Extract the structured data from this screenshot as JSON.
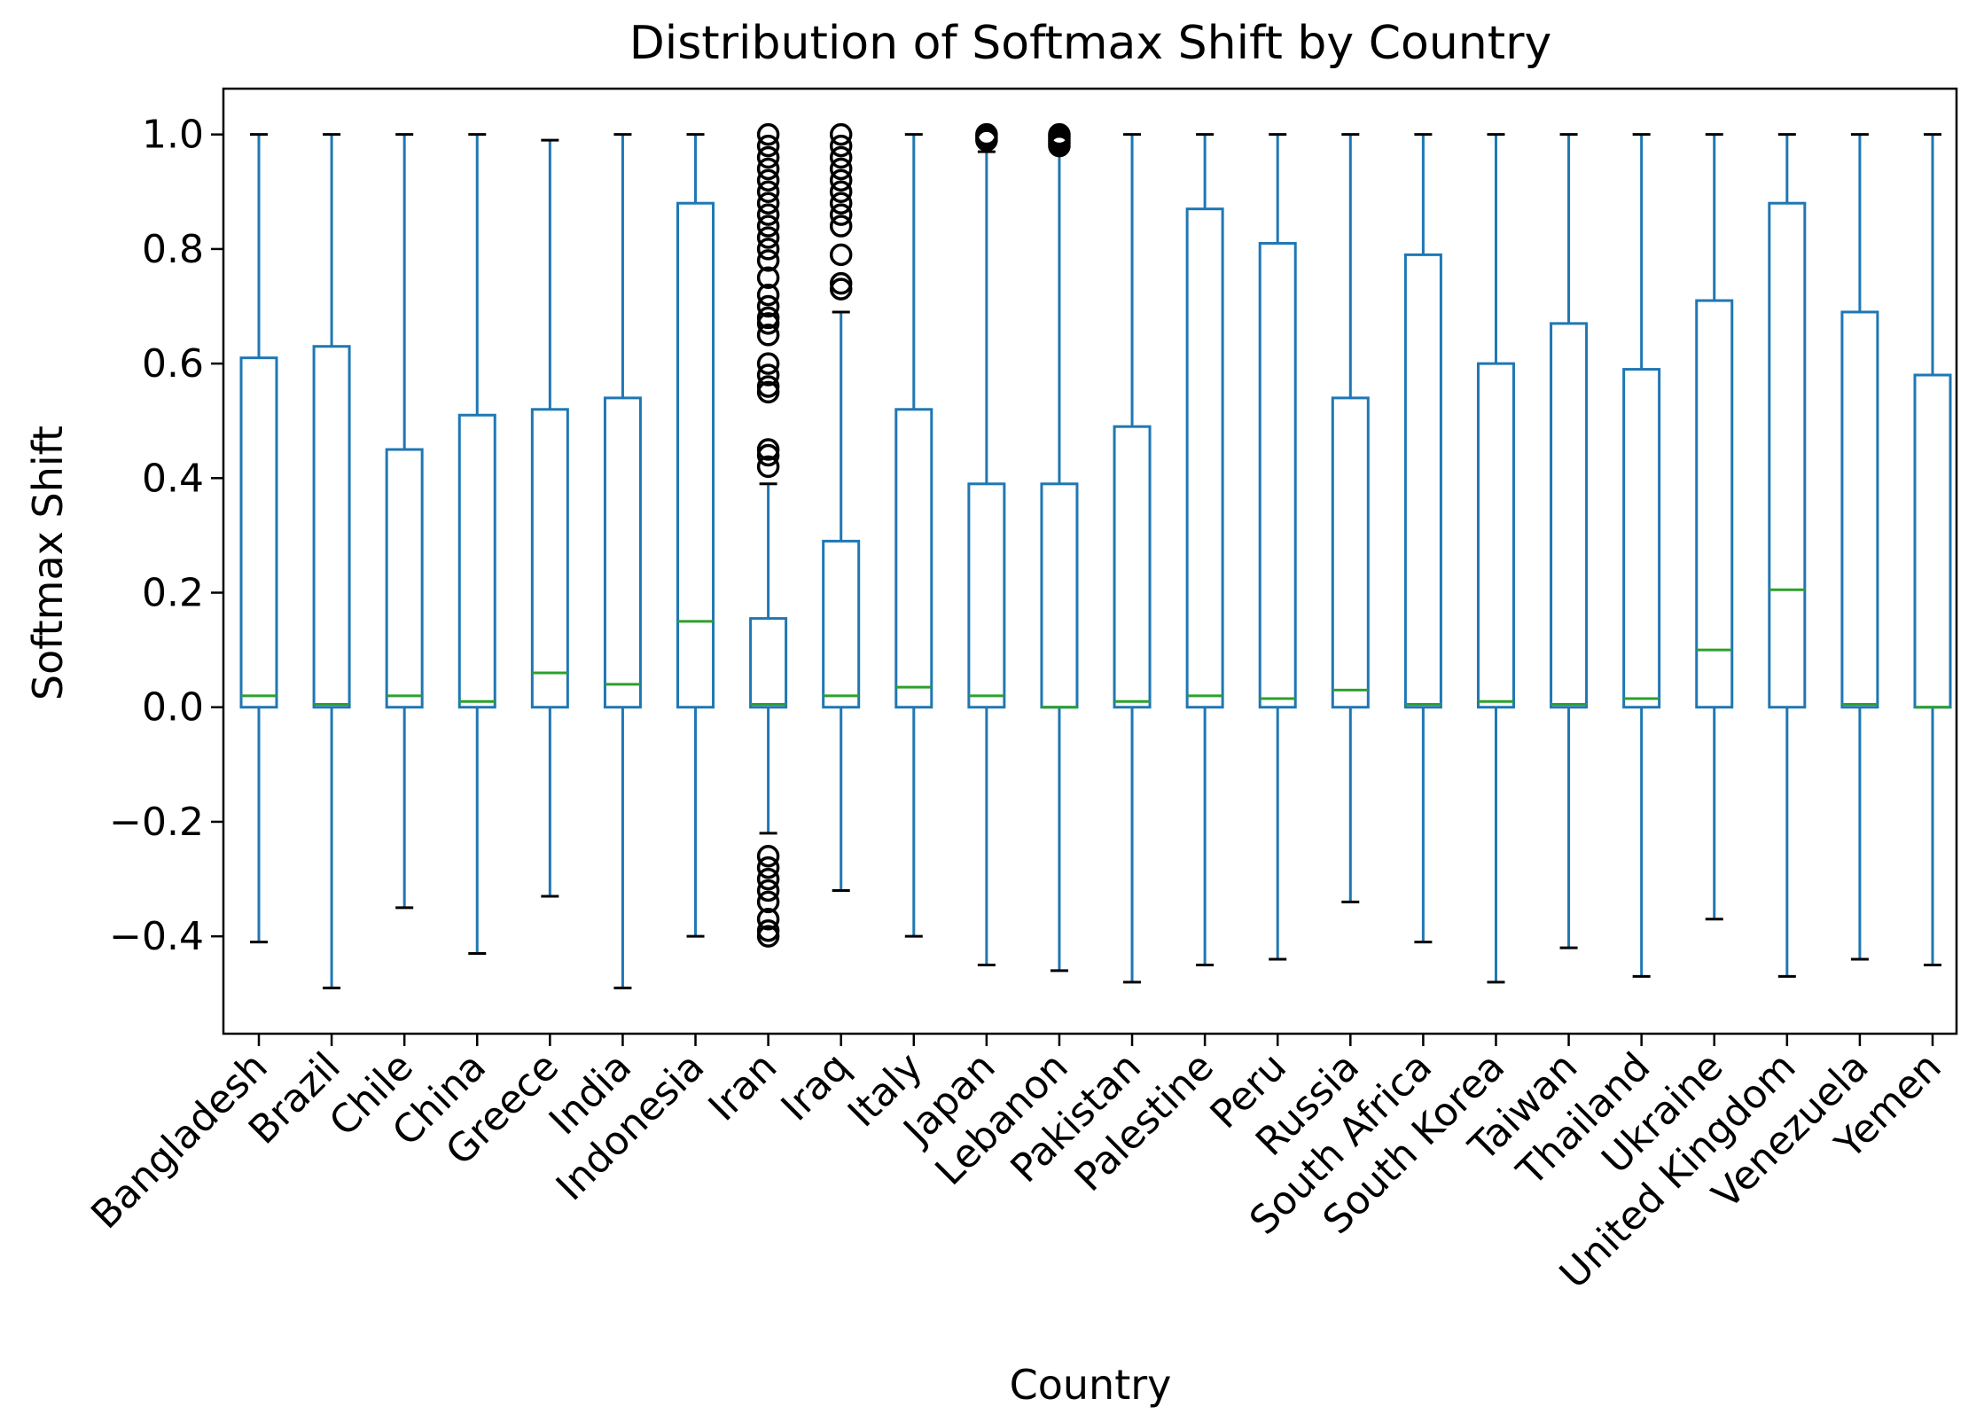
{
  "chart_data": {
    "type": "boxplot",
    "title": "Distribution of Softmax Shift by Country",
    "xlabel": "Country",
    "ylabel": "Softmax Shift",
    "ylim": [
      -0.57,
      1.08
    ],
    "yticks": [
      -0.4,
      -0.2,
      0.0,
      0.2,
      0.4,
      0.6,
      0.8,
      1.0
    ],
    "ytick_labels": [
      "−0.4",
      "−0.2",
      "0.0",
      "0.2",
      "0.4",
      "0.6",
      "0.8",
      "1.0"
    ],
    "grid": false,
    "colors": {
      "box": "#1f77b4",
      "median": "#2ca02c",
      "cap": "#000000",
      "outlier": "#000000"
    },
    "categories": [
      "Bangladesh",
      "Brazil",
      "Chile",
      "China",
      "Greece",
      "India",
      "Indonesia",
      "Iran",
      "Iraq",
      "Italy",
      "Japan",
      "Lebanon",
      "Pakistan",
      "Palestine",
      "Peru",
      "Russia",
      "South Africa",
      "South Korea",
      "Taiwan",
      "Thailand",
      "Ukraine",
      "United Kingdom",
      "Venezuela",
      "Yemen"
    ],
    "boxes": [
      {
        "name": "Bangladesh",
        "whislo": -0.41,
        "q1": 0.0,
        "med": 0.02,
        "q3": 0.61,
        "whishi": 1.0,
        "fliers": []
      },
      {
        "name": "Brazil",
        "whislo": -0.49,
        "q1": 0.0,
        "med": 0.005,
        "q3": 0.63,
        "whishi": 1.0,
        "fliers": []
      },
      {
        "name": "Chile",
        "whislo": -0.35,
        "q1": 0.0,
        "med": 0.02,
        "q3": 0.45,
        "whishi": 1.0,
        "fliers": []
      },
      {
        "name": "China",
        "whislo": -0.43,
        "q1": 0.0,
        "med": 0.01,
        "q3": 0.51,
        "whishi": 1.0,
        "fliers": []
      },
      {
        "name": "Greece",
        "whislo": -0.33,
        "q1": 0.0,
        "med": 0.06,
        "q3": 0.52,
        "whishi": 0.99,
        "fliers": []
      },
      {
        "name": "India",
        "whislo": -0.49,
        "q1": 0.0,
        "med": 0.04,
        "q3": 0.54,
        "whishi": 1.0,
        "fliers": []
      },
      {
        "name": "Indonesia",
        "whislo": -0.4,
        "q1": 0.0,
        "med": 0.15,
        "q3": 0.88,
        "whishi": 1.0,
        "fliers": []
      },
      {
        "name": "Iran",
        "whislo": -0.22,
        "q1": 0.0,
        "med": 0.005,
        "q3": 0.155,
        "whishi": 0.39,
        "fliers": [
          0.42,
          0.44,
          0.45,
          0.55,
          0.56,
          0.58,
          0.6,
          0.65,
          0.67,
          0.68,
          0.7,
          0.72,
          0.75,
          0.78,
          0.8,
          0.82,
          0.84,
          0.86,
          0.88,
          0.9,
          0.92,
          0.94,
          0.96,
          0.98,
          1.0,
          -0.26,
          -0.28,
          -0.3,
          -0.32,
          -0.34,
          -0.37,
          -0.39,
          -0.4
        ]
      },
      {
        "name": "Iraq",
        "whislo": -0.32,
        "q1": 0.0,
        "med": 0.02,
        "q3": 0.29,
        "whishi": 0.69,
        "fliers": [
          0.73,
          0.74,
          0.79,
          0.84,
          0.86,
          0.88,
          0.9,
          0.92,
          0.94,
          0.96,
          0.98,
          1.0
        ]
      },
      {
        "name": "Italy",
        "whislo": -0.4,
        "q1": 0.0,
        "med": 0.035,
        "q3": 0.52,
        "whishi": 1.0,
        "fliers": []
      },
      {
        "name": "Japan",
        "whislo": -0.45,
        "q1": 0.0,
        "med": 0.02,
        "q3": 0.39,
        "whishi": 0.97,
        "fliers": [
          0.99,
          0.995,
          1.0
        ]
      },
      {
        "name": "Lebanon",
        "whislo": -0.46,
        "q1": 0.0,
        "med": 0.0,
        "q3": 0.39,
        "whishi": 0.97,
        "fliers": [
          0.98,
          0.985,
          0.99,
          0.995,
          1.0
        ]
      },
      {
        "name": "Pakistan",
        "whislo": -0.48,
        "q1": 0.0,
        "med": 0.01,
        "q3": 0.49,
        "whishi": 1.0,
        "fliers": []
      },
      {
        "name": "Palestine",
        "whislo": -0.45,
        "q1": 0.0,
        "med": 0.02,
        "q3": 0.87,
        "whishi": 1.0,
        "fliers": []
      },
      {
        "name": "Peru",
        "whislo": -0.44,
        "q1": 0.0,
        "med": 0.015,
        "q3": 0.81,
        "whishi": 1.0,
        "fliers": []
      },
      {
        "name": "Russia",
        "whislo": -0.34,
        "q1": 0.0,
        "med": 0.03,
        "q3": 0.54,
        "whishi": 1.0,
        "fliers": []
      },
      {
        "name": "South Africa",
        "whislo": -0.41,
        "q1": 0.0,
        "med": 0.005,
        "q3": 0.79,
        "whishi": 1.0,
        "fliers": []
      },
      {
        "name": "South Korea",
        "whislo": -0.48,
        "q1": 0.0,
        "med": 0.01,
        "q3": 0.6,
        "whishi": 1.0,
        "fliers": []
      },
      {
        "name": "Taiwan",
        "whislo": -0.42,
        "q1": 0.0,
        "med": 0.005,
        "q3": 0.67,
        "whishi": 1.0,
        "fliers": []
      },
      {
        "name": "Thailand",
        "whislo": -0.47,
        "q1": 0.0,
        "med": 0.015,
        "q3": 0.59,
        "whishi": 1.0,
        "fliers": []
      },
      {
        "name": "Ukraine",
        "whislo": -0.37,
        "q1": 0.0,
        "med": 0.1,
        "q3": 0.71,
        "whishi": 1.0,
        "fliers": []
      },
      {
        "name": "United Kingdom",
        "whislo": -0.47,
        "q1": 0.0,
        "med": 0.205,
        "q3": 0.88,
        "whishi": 1.0,
        "fliers": []
      },
      {
        "name": "Venezuela",
        "whislo": -0.44,
        "q1": 0.0,
        "med": 0.005,
        "q3": 0.69,
        "whishi": 1.0,
        "fliers": []
      },
      {
        "name": "Yemen",
        "whislo": -0.45,
        "q1": 0.0,
        "med": 0.0,
        "q3": 0.58,
        "whishi": 1.0,
        "fliers": []
      }
    ]
  }
}
